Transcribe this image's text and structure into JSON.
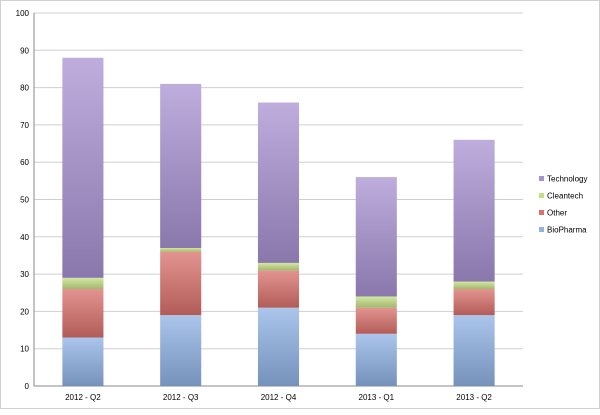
{
  "chart_data": {
    "type": "bar",
    "stacked": true,
    "categories": [
      "2012 - Q2",
      "2012 - Q3",
      "2012 - Q4",
      "2013 - Q1",
      "2013 - Q2"
    ],
    "series": [
      {
        "name": "BioPharma",
        "values": [
          13,
          19,
          21,
          14,
          19
        ],
        "color": "#8fb2e4"
      },
      {
        "name": "Other",
        "values": [
          13,
          17,
          10,
          7,
          7
        ],
        "color": "#d9706b"
      },
      {
        "name": "Cleantech",
        "values": [
          3,
          1,
          2,
          3,
          2
        ],
        "color": "#c5df86"
      },
      {
        "name": "Technology",
        "values": [
          59,
          44,
          43,
          32,
          38
        ],
        "color": "#a891d2"
      }
    ],
    "legend_order": [
      "Technology",
      "Cleantech",
      "Other",
      "BioPharma"
    ],
    "y_ticks": [
      "0",
      "10",
      "20",
      "30",
      "40",
      "50",
      "60",
      "70",
      "80",
      "90",
      "100"
    ],
    "ylim": [
      0,
      100
    ],
    "grid": true,
    "legend_position": "right",
    "title": "",
    "xlabel": "",
    "ylabel": ""
  }
}
